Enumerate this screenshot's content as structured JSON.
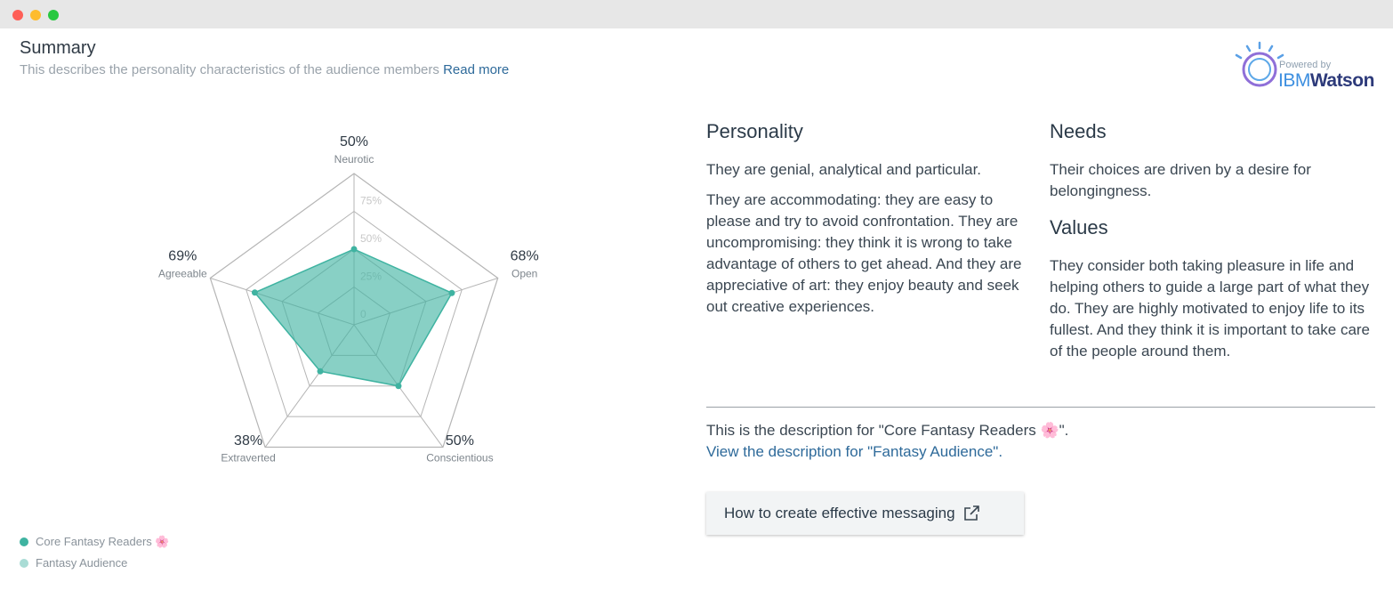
{
  "header": {
    "title": "Summary",
    "subtitle": "This describes the personality characteristics of the audience members",
    "link": "Read more"
  },
  "logo": {
    "tagline": "Powered by",
    "brand": "IBM",
    "product": "Watson"
  },
  "chart_data": {
    "type": "radar",
    "categories": [
      "Neurotic",
      "Open",
      "Conscientious",
      "Extraverted",
      "Agreeable"
    ],
    "series": [
      {
        "name": "Core Fantasy Readers 🌸",
        "color": "#3fb3a1",
        "values": [
          50,
          68,
          50,
          38,
          69
        ],
        "value_labels": [
          "50%",
          "68%",
          "50%",
          "38%",
          "69%"
        ]
      },
      {
        "name": "Fantasy Audience",
        "color": "#a9dcd5"
      }
    ],
    "ylim": [
      0,
      100
    ],
    "yticks": [
      0,
      {
        "value": 25,
        "label": "25%"
      },
      {
        "value": 50,
        "label": "50%"
      },
      {
        "value": 75,
        "label": "75%"
      }
    ],
    "grid": true
  },
  "personality": {
    "heading": "Personality",
    "paragraphs": [
      "They are genial, analytical and particular.",
      "They are accommodating: they are easy to please and try to avoid confrontation. They are uncompromising: they think it is wrong to take advantage of others to get ahead. And they are appreciative of art: they enjoy beauty and seek out creative experiences."
    ]
  },
  "needs": {
    "heading": "Needs",
    "paragraphs": [
      "Their choices are driven by a desire for belongingness."
    ]
  },
  "values": {
    "heading": "Values",
    "paragraphs": [
      "They consider both taking pleasure in life and helping others to guide a large part of what they do. They are highly motivated to enjoy life to its fullest. And they think it is important to take care of the people around them."
    ]
  },
  "description": {
    "text": "This is the description for \"Core Fantasy Readers 🌸\".",
    "link": "View the description for \"Fantasy Audience\"."
  },
  "button": {
    "label": "How to create effective messaging"
  }
}
